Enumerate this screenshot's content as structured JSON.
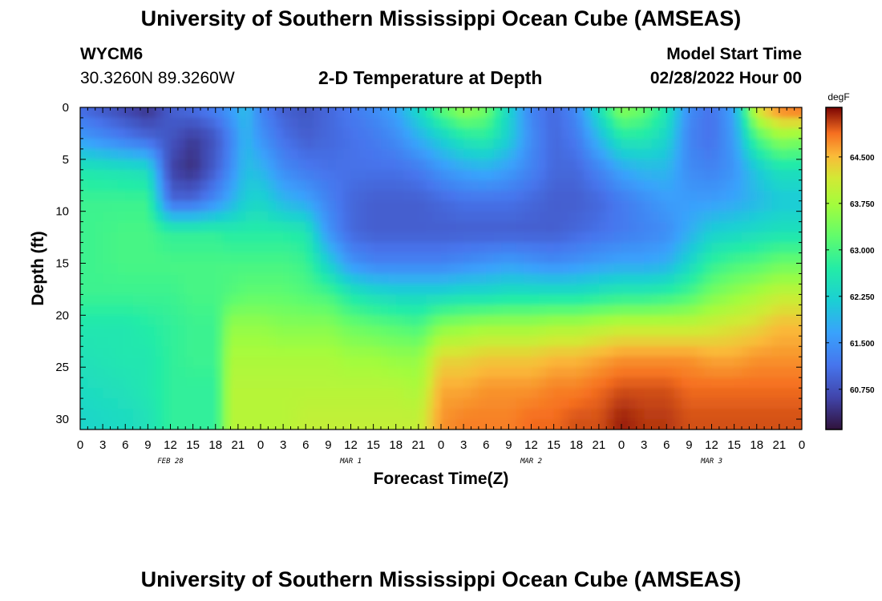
{
  "page": {
    "title": "University of Southern Mississippi Ocean Cube (AMSEAS)",
    "title_repeat": "University of Southern Mississippi Ocean Cube (AMSEAS)",
    "station_id": "WYCM6",
    "coordinates": "30.3260N  89.3260W",
    "subtitle": "2-D Temperature at Depth",
    "model_start_label": "Model Start Time",
    "model_start_value": "02/28/2022 Hour 00"
  },
  "chart_data": {
    "type": "heatmap",
    "xlabel": "Forecast Time(Z)",
    "ylabel": "Depth (ft)",
    "colorbar_unit": "degF",
    "x_hours": [
      0,
      3,
      6,
      9,
      12,
      15,
      18,
      21,
      24,
      27,
      30,
      33,
      36,
      39,
      42,
      45,
      48,
      51,
      54,
      57,
      60,
      63,
      66,
      69,
      72,
      75,
      78,
      81,
      84,
      87,
      90,
      93,
      96
    ],
    "x_tick_labels": [
      "0",
      "3",
      "6",
      "9",
      "12",
      "15",
      "18",
      "21",
      "0",
      "3",
      "6",
      "9",
      "12",
      "15",
      "18",
      "21",
      "0",
      "3",
      "6",
      "9",
      "12",
      "15",
      "18",
      "21",
      "0",
      "3",
      "6",
      "9",
      "12",
      "15",
      "18",
      "21",
      "0"
    ],
    "day_labels": [
      {
        "hour": 12,
        "text": "FEB 28"
      },
      {
        "hour": 36,
        "text": "MAR 1"
      },
      {
        "hour": 60,
        "text": "MAR 2"
      },
      {
        "hour": 84,
        "text": "MAR 3"
      }
    ],
    "y_ticks": [
      0,
      5,
      10,
      15,
      20,
      25,
      30
    ],
    "ylim": [
      0,
      31
    ],
    "xlim": [
      0,
      96
    ],
    "color_ticks": [
      "60.750",
      "61.500",
      "62.250",
      "63.000",
      "63.750",
      "64.500"
    ],
    "color_range": [
      60.1,
      65.3
    ],
    "depths_ft": [
      0,
      3,
      6,
      9,
      12,
      15,
      18,
      21,
      24,
      27,
      30
    ],
    "temperature_columns": [
      {
        "hour": 0,
        "t": [
          61.0,
          61.6,
          62.6,
          62.9,
          62.9,
          62.9,
          62.9,
          62.6,
          62.5,
          62.4,
          62.3
        ]
      },
      {
        "hour": 6,
        "t": [
          60.6,
          61.2,
          62.5,
          62.9,
          63.0,
          63.0,
          62.9,
          62.6,
          62.6,
          62.5,
          62.4
        ]
      },
      {
        "hour": 9,
        "t": [
          60.4,
          61.0,
          62.4,
          62.9,
          63.0,
          63.0,
          62.9,
          62.7,
          62.6,
          62.6,
          62.5
        ]
      },
      {
        "hour": 12,
        "t": [
          60.9,
          60.8,
          60.6,
          61.0,
          62.8,
          63.0,
          62.9,
          62.8,
          62.8,
          62.8,
          62.8
        ]
      },
      {
        "hour": 15,
        "t": [
          61.1,
          60.5,
          60.4,
          61.0,
          62.8,
          63.0,
          63.0,
          62.9,
          62.9,
          62.8,
          62.8
        ]
      },
      {
        "hour": 18,
        "t": [
          61.3,
          60.8,
          60.9,
          61.4,
          62.8,
          63.0,
          63.0,
          62.9,
          62.9,
          62.8,
          62.8
        ]
      },
      {
        "hour": 20,
        "t": [
          61.6,
          61.3,
          61.4,
          61.8,
          62.7,
          63.0,
          63.1,
          63.6,
          63.8,
          63.9,
          63.9
        ]
      },
      {
        "hour": 22,
        "t": [
          62.0,
          61.9,
          62.0,
          62.2,
          62.7,
          63.0,
          63.2,
          63.6,
          63.8,
          63.9,
          63.9
        ]
      },
      {
        "hour": 24,
        "t": [
          61.3,
          61.5,
          61.9,
          62.3,
          62.7,
          63.0,
          63.2,
          63.6,
          63.8,
          63.9,
          63.9
        ]
      },
      {
        "hour": 27,
        "t": [
          60.9,
          61.1,
          61.4,
          61.9,
          62.7,
          63.0,
          63.2,
          63.5,
          63.8,
          63.9,
          63.9
        ]
      },
      {
        "hour": 30,
        "t": [
          60.8,
          60.9,
          61.2,
          61.7,
          62.6,
          62.9,
          63.1,
          63.5,
          63.8,
          63.9,
          64.0
        ]
      },
      {
        "hour": 33,
        "t": [
          61.0,
          61.0,
          61.1,
          61.3,
          61.5,
          62.2,
          63.0,
          63.5,
          63.8,
          63.9,
          64.0
        ]
      },
      {
        "hour": 36,
        "t": [
          61.2,
          61.1,
          61.1,
          61.0,
          61.0,
          61.5,
          62.6,
          63.3,
          63.7,
          63.9,
          64.0
        ]
      },
      {
        "hour": 39,
        "t": [
          61.4,
          61.2,
          61.1,
          60.9,
          60.9,
          61.3,
          62.4,
          63.2,
          63.7,
          63.9,
          64.0
        ]
      },
      {
        "hour": 42,
        "t": [
          61.7,
          61.4,
          61.1,
          60.9,
          60.9,
          61.3,
          62.3,
          63.1,
          63.6,
          63.9,
          64.0
        ]
      },
      {
        "hour": 45,
        "t": [
          62.4,
          61.8,
          61.2,
          60.9,
          60.9,
          61.3,
          62.3,
          63.0,
          63.6,
          63.8,
          64.0
        ]
      },
      {
        "hour": 48,
        "t": [
          63.2,
          62.2,
          61.5,
          61.0,
          60.9,
          61.3,
          62.3,
          63.5,
          64.3,
          64.6,
          64.7
        ]
      },
      {
        "hour": 51,
        "t": [
          63.7,
          62.6,
          61.7,
          61.1,
          60.9,
          61.4,
          62.4,
          63.6,
          64.3,
          64.6,
          64.8
        ]
      },
      {
        "hour": 54,
        "t": [
          63.4,
          62.7,
          61.8,
          61.1,
          60.9,
          61.5,
          62.4,
          63.7,
          64.4,
          64.7,
          64.8
        ]
      },
      {
        "hour": 57,
        "t": [
          62.3,
          62.2,
          61.6,
          61.1,
          60.9,
          61.6,
          62.5,
          63.7,
          64.4,
          64.7,
          64.8
        ]
      },
      {
        "hour": 60,
        "t": [
          61.3,
          61.4,
          61.3,
          61.0,
          60.9,
          61.5,
          62.5,
          63.7,
          64.4,
          64.7,
          64.9
        ]
      },
      {
        "hour": 63,
        "t": [
          61.0,
          61.0,
          61.0,
          60.9,
          60.9,
          61.4,
          62.5,
          63.8,
          64.5,
          64.8,
          64.9
        ]
      },
      {
        "hour": 66,
        "t": [
          61.4,
          61.2,
          61.0,
          60.9,
          61.0,
          61.5,
          62.5,
          63.8,
          64.5,
          64.8,
          65.0
        ]
      },
      {
        "hour": 69,
        "t": [
          62.5,
          61.9,
          61.3,
          61.0,
          61.1,
          61.6,
          62.6,
          63.9,
          64.6,
          64.9,
          65.0
        ]
      },
      {
        "hour": 72,
        "t": [
          63.6,
          62.6,
          61.7,
          61.2,
          61.2,
          61.7,
          62.7,
          64.0,
          64.7,
          65.0,
          65.2
        ]
      },
      {
        "hour": 75,
        "t": [
          63.3,
          62.6,
          61.9,
          61.4,
          61.3,
          61.7,
          62.7,
          64.0,
          64.7,
          65.0,
          65.1
        ]
      },
      {
        "hour": 78,
        "t": [
          62.6,
          62.3,
          61.9,
          61.6,
          61.4,
          61.8,
          62.8,
          64.0,
          64.7,
          65.0,
          65.1
        ]
      },
      {
        "hour": 81,
        "t": [
          61.4,
          61.3,
          61.4,
          61.6,
          61.8,
          62.3,
          63.0,
          64.0,
          64.7,
          64.9,
          65.0
        ]
      },
      {
        "hour": 84,
        "t": [
          61.1,
          61.1,
          61.3,
          61.6,
          62.2,
          62.8,
          63.4,
          64.1,
          64.6,
          64.9,
          65.0
        ]
      },
      {
        "hour": 87,
        "t": [
          61.7,
          61.6,
          61.5,
          61.7,
          62.3,
          63.0,
          63.6,
          64.2,
          64.6,
          64.9,
          65.0
        ]
      },
      {
        "hour": 90,
        "t": [
          64.3,
          63.0,
          62.1,
          61.9,
          62.4,
          63.1,
          63.8,
          64.3,
          64.7,
          64.9,
          65.0
        ]
      },
      {
        "hour": 93,
        "t": [
          64.9,
          63.6,
          62.5,
          62.1,
          62.5,
          63.3,
          64.0,
          64.5,
          64.7,
          64.9,
          65.0
        ]
      },
      {
        "hour": 96,
        "t": [
          65.0,
          63.5,
          62.5,
          62.1,
          62.5,
          63.3,
          64.0,
          64.5,
          64.7,
          64.9,
          65.0
        ]
      }
    ]
  }
}
